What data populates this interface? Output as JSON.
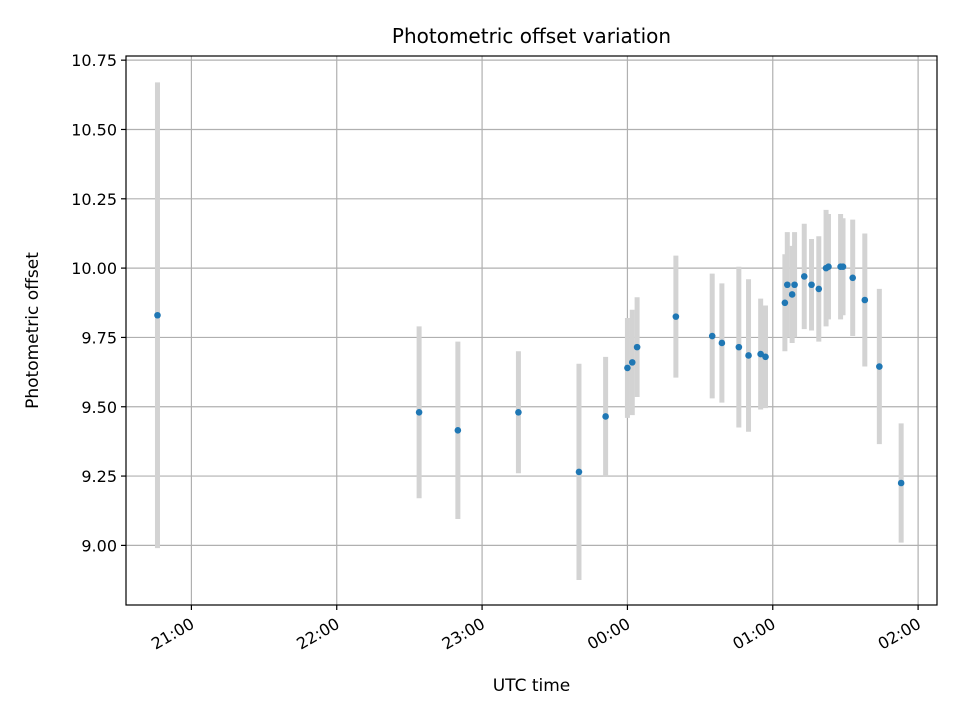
{
  "chart_data": {
    "type": "scatter",
    "title": "Photometric offset variation",
    "xlabel": "UTC time",
    "ylabel": "Photometric offset",
    "x_unit": "hours since 20:00 UTC",
    "xlim": [
      20.55,
      26.13
    ],
    "ylim": [
      8.785,
      10.765
    ],
    "grid": true,
    "x_ticks": [
      {
        "value": 21,
        "label": "21:00"
      },
      {
        "value": 22,
        "label": "22:00"
      },
      {
        "value": 23,
        "label": "23:00"
      },
      {
        "value": 24,
        "label": "00:00"
      },
      {
        "value": 25,
        "label": "01:00"
      },
      {
        "value": 26,
        "label": "02:00"
      }
    ],
    "y_ticks": [
      {
        "value": 9.0,
        "label": "9.00"
      },
      {
        "value": 9.25,
        "label": "9.25"
      },
      {
        "value": 9.5,
        "label": "9.50"
      },
      {
        "value": 9.75,
        "label": "9.75"
      },
      {
        "value": 10.0,
        "label": "10.00"
      },
      {
        "value": 10.25,
        "label": "10.25"
      },
      {
        "value": 10.5,
        "label": "10.50"
      },
      {
        "value": 10.75,
        "label": "10.75"
      }
    ],
    "marker_color": "#1f77b4",
    "errorbar_color": "#d3d3d3",
    "series": [
      {
        "points": [
          {
            "time": "20:46",
            "y": 9.83,
            "err": 0.84
          },
          {
            "time": "22:34",
            "y": 9.48,
            "err": 0.31
          },
          {
            "time": "22:50",
            "y": 9.415,
            "err": 0.32
          },
          {
            "time": "23:15",
            "y": 9.48,
            "err": 0.22
          },
          {
            "time": "23:40",
            "y": 9.265,
            "err": 0.39
          },
          {
            "time": "23:51",
            "y": 9.465,
            "err": 0.215
          },
          {
            "time": "00:00",
            "y": 9.64,
            "err": 0.18
          },
          {
            "time": "00:02",
            "y": 9.66,
            "err": 0.19
          },
          {
            "time": "00:04",
            "y": 9.715,
            "err": 0.18
          },
          {
            "time": "00:20",
            "y": 9.825,
            "err": 0.22
          },
          {
            "time": "00:35",
            "y": 9.755,
            "err": 0.225
          },
          {
            "time": "00:39",
            "y": 9.73,
            "err": 0.215
          },
          {
            "time": "00:46",
            "y": 9.715,
            "err": 0.29
          },
          {
            "time": "00:50",
            "y": 9.685,
            "err": 0.275
          },
          {
            "time": "00:55",
            "y": 9.69,
            "err": 0.2
          },
          {
            "time": "00:57",
            "y": 9.68,
            "err": 0.185
          },
          {
            "time": "01:05",
            "y": 9.875,
            "err": 0.175
          },
          {
            "time": "01:06",
            "y": 9.94,
            "err": 0.19
          },
          {
            "time": "01:08",
            "y": 9.905,
            "err": 0.175
          },
          {
            "time": "01:09",
            "y": 9.94,
            "err": 0.19
          },
          {
            "time": "01:13",
            "y": 9.97,
            "err": 0.19
          },
          {
            "time": "01:16",
            "y": 9.94,
            "err": 0.165
          },
          {
            "time": "01:19",
            "y": 9.925,
            "err": 0.19
          },
          {
            "time": "01:22",
            "y": 10.0,
            "err": 0.21
          },
          {
            "time": "01:23",
            "y": 10.005,
            "err": 0.19
          },
          {
            "time": "01:28",
            "y": 10.005,
            "err": 0.19
          },
          {
            "time": "01:29",
            "y": 10.005,
            "err": 0.175
          },
          {
            "time": "01:33",
            "y": 9.965,
            "err": 0.21
          },
          {
            "time": "01:38",
            "y": 9.885,
            "err": 0.24
          },
          {
            "time": "01:44",
            "y": 9.645,
            "err": 0.28
          },
          {
            "time": "01:53",
            "y": 9.225,
            "err": 0.215
          }
        ]
      }
    ]
  }
}
